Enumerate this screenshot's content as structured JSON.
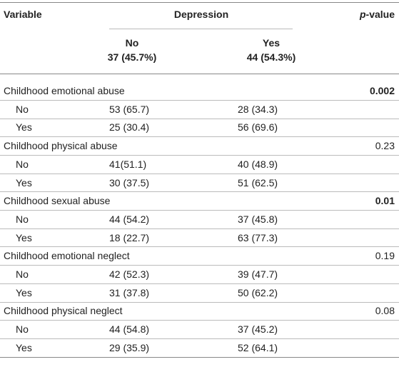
{
  "header": {
    "variable": "Variable",
    "group": "Depression",
    "p_italic": "p",
    "p_rest": "-value",
    "columns": [
      {
        "label": "No",
        "count": "37 (45.7%)"
      },
      {
        "label": "Yes",
        "count": "44 (54.3%)"
      }
    ]
  },
  "groups": [
    {
      "label": "Childhood emotional abuse",
      "p": "0.002",
      "bold": true,
      "rows": [
        [
          "No",
          "53 (65.7)",
          "28 (34.3)"
        ],
        [
          "Yes",
          "25 (30.4)",
          "56 (69.6)"
        ]
      ]
    },
    {
      "label": "Childhood physical abuse",
      "p": "0.23",
      "bold": false,
      "rows": [
        [
          "No",
          "41(51.1)",
          "40 (48.9)"
        ],
        [
          "Yes",
          "30 (37.5)",
          "51 (62.5)"
        ]
      ]
    },
    {
      "label": "Childhood sexual abuse",
      "p": "0.01",
      "bold": true,
      "rows": [
        [
          "No",
          "44 (54.2)",
          "37 (45.8)"
        ],
        [
          "Yes",
          "18 (22.7)",
          "63 (77.3)"
        ]
      ]
    },
    {
      "label": "Childhood emotional neglect",
      "p": "0.19",
      "bold": false,
      "rows": [
        [
          "No",
          "42 (52.3)",
          "39 (47.7)"
        ],
        [
          "Yes",
          "31 (37.8)",
          "50 (62.2)"
        ]
      ]
    },
    {
      "label": "Childhood physical neglect",
      "p": "0.08",
      "bold": false,
      "rows": [
        [
          "No",
          "44 (54.8)",
          "37 (45.2)"
        ],
        [
          "Yes",
          "29 (35.9)",
          "52 (64.1)"
        ]
      ]
    }
  ]
}
